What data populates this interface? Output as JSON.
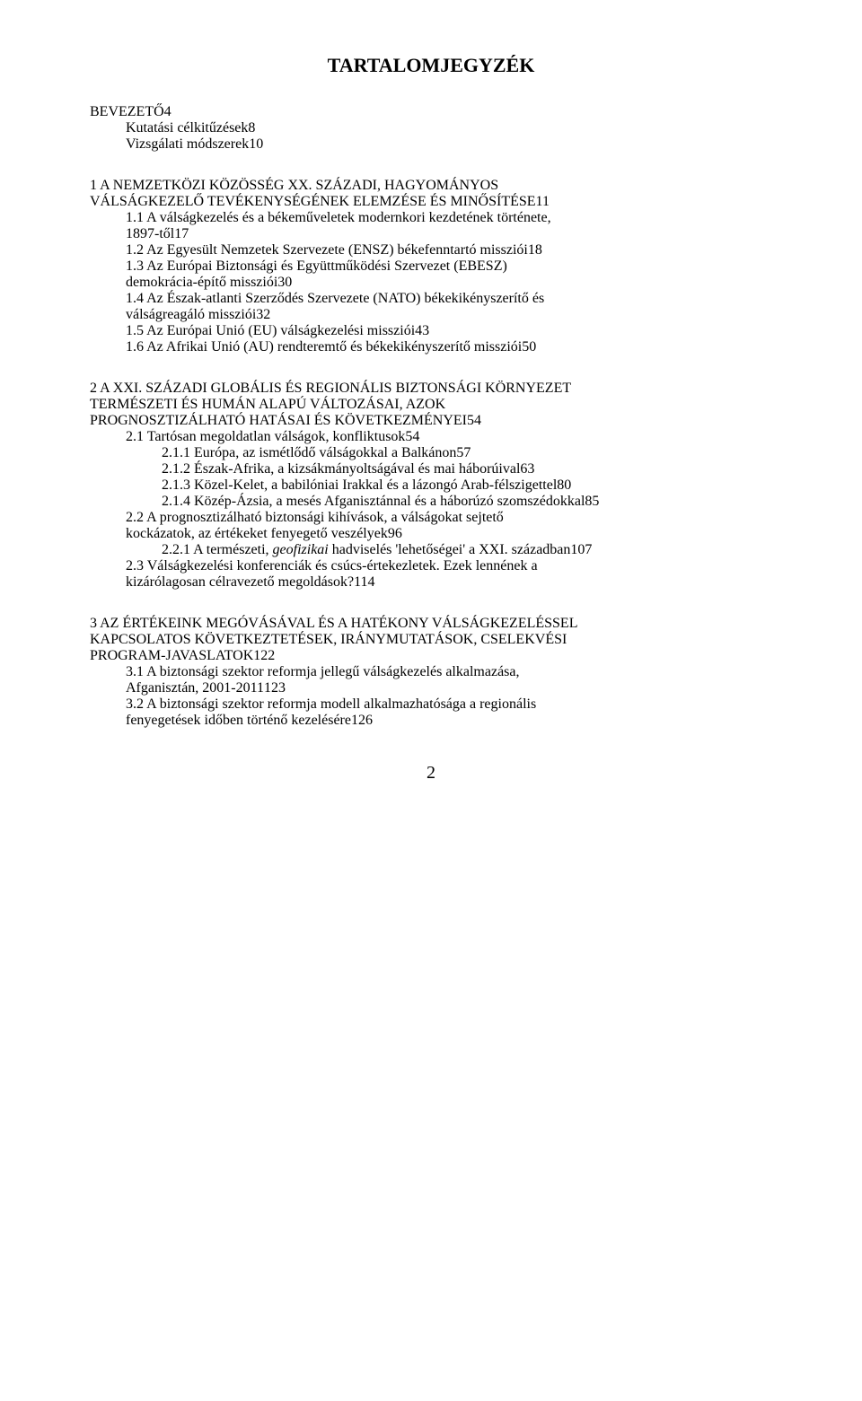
{
  "page": {
    "title": "TARTALOMJEGYZÉK",
    "footer_page_number": "2",
    "fontFamily": "Times New Roman",
    "text_color": "#000000",
    "background_color": "#ffffff",
    "font_size": 20
  },
  "groups": [
    {
      "items": [
        {
          "indent": 0,
          "lines": [
            "BEVEZETŐ"
          ],
          "page": "4"
        },
        {
          "indent": 1,
          "lines": [
            "Kutatási célkitűzések"
          ],
          "page": "8"
        },
        {
          "indent": 1,
          "lines": [
            "Vizsgálati módszerek"
          ],
          "page": "10"
        }
      ]
    },
    {
      "items": [
        {
          "indent": 0,
          "lines": [
            "1    A NEMZETKÖZI KÖZÖSSÉG XX. SZÁZADI, HAGYOMÁNYOS",
            "VÁLSÁGKEZELŐ TEVÉKENYSÉGÉNEK ELEMZÉSE ÉS MINŐSÍTÉSE"
          ],
          "page": "11"
        },
        {
          "indent": 1,
          "lines": [
            "1.1   A válságkezelés és a békeműveletek modernkori kezdetének története,",
            "        1897-től"
          ],
          "page": "17"
        },
        {
          "indent": 1,
          "lines": [
            "1.2   Az Egyesült Nemzetek Szervezete (ENSZ) békefenntartó missziói"
          ],
          "page": "18"
        },
        {
          "indent": 1,
          "lines": [
            "1.3   Az Európai Biztonsági és Együttműködési Szervezet (EBESZ)",
            "        demokrácia-építő missziói"
          ],
          "page": "30"
        },
        {
          "indent": 1,
          "lines": [
            "1.4   Az Észak-atlanti Szerződés Szervezete (NATO) békekikényszerítő és",
            "        válságreagáló missziói"
          ],
          "page": "32"
        },
        {
          "indent": 1,
          "lines": [
            "1.5   Az Európai Unió (EU) válságkezelési missziói"
          ],
          "page": "43"
        },
        {
          "indent": 1,
          "lines": [
            "1.6   Az Afrikai Unió (AU) rendteremtő és békekikényszerítő missziói"
          ],
          "page": "50"
        }
      ]
    },
    {
      "items": [
        {
          "indent": 0,
          "lines": [
            "2    A XXI. SZÁZADI GLOBÁLIS ÉS REGIONÁLIS BIZTONSÁGI KÖRNYEZET",
            "TERMÉSZETI ÉS HUMÁN ALAPÚ VÁLTOZÁSAI, AZOK",
            "PROGNOSZTIZÁLHATÓ HATÁSAI ÉS KÖVETKEZMÉNYEI"
          ],
          "page": "54"
        },
        {
          "indent": 1,
          "lines": [
            "2.1   Tartósan megoldatlan válságok, konfliktusok"
          ],
          "page": "54"
        },
        {
          "indent": 2,
          "lines": [
            "2.1.1    Európa, az ismétlődő válságokkal a Balkánon"
          ],
          "page": "57"
        },
        {
          "indent": 2,
          "lines": [
            "2.1.2    Észak-Afrika, a kizsákmányoltságával és mai háborúival"
          ],
          "page": "63"
        },
        {
          "indent": 2,
          "lines": [
            "2.1.3    Közel-Kelet, a babilóniai Irakkal és a lázongó Arab-félszigettel"
          ],
          "page": "80"
        },
        {
          "indent": 2,
          "lines": [
            "2.1.4    Közép-Ázsia, a mesés Afganisztánnal és a háborúzó szomszédokkal"
          ],
          "page": "85"
        },
        {
          "indent": 1,
          "lines": [
            "2.2   A prognosztizálható biztonsági kihívások, a válságokat sejtető",
            "        kockázatok, az értékeket fenyegető veszélyek"
          ],
          "page": "96"
        },
        {
          "indent": 2,
          "lines": [
            "2.2.1    A természeti, <i>geofizikai</i> hadviselés 'lehetőségei' a XXI. században"
          ],
          "page": "107",
          "html": true
        },
        {
          "indent": 1,
          "lines": [
            "2.3   Válságkezelési konferenciák és csúcs-értekezletek. Ezek lennének a",
            "        kizárólagosan célravezető megoldások?"
          ],
          "page": "114"
        }
      ]
    },
    {
      "items": [
        {
          "indent": 0,
          "lines": [
            "3    AZ ÉRTÉKEINK MEGÓVÁSÁVAL ÉS A HATÉKONY VÁLSÁGKEZELÉSSEL",
            "KAPCSOLATOS KÖVETKEZTETÉSEK, IRÁNYMUTATÁSOK, CSELEKVÉSI",
            "PROGRAM-JAVASLATOK"
          ],
          "page": "122"
        },
        {
          "indent": 1,
          "lines": [
            "3.1   A biztonsági szektor reformja jellegű válságkezelés alkalmazása,",
            "        Afganisztán, 2001-2011"
          ],
          "page": "123"
        },
        {
          "indent": 1,
          "lines": [
            "3.2   A biztonsági szektor reformja modell alkalmazhatósága a regionális",
            "        fenyegetések időben történő kezelésére"
          ],
          "page": "126"
        }
      ]
    }
  ]
}
